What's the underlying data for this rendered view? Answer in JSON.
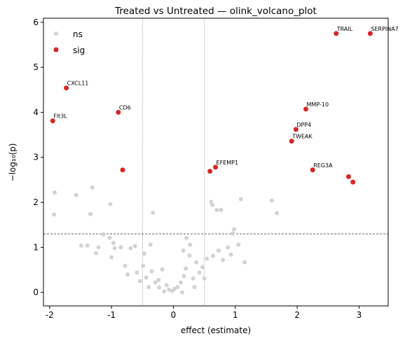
{
  "chart_data": {
    "type": "scatter",
    "title": "Treated vs Untreated — olink_volcano_plot",
    "xlabel": "effect (estimate)",
    "ylabel": "−log₁₀(p)",
    "xlim": [
      -2.1,
      3.47
    ],
    "ylim": [
      -0.3,
      6.09
    ],
    "xticks": [
      -2,
      -1,
      0,
      1,
      2,
      3
    ],
    "yticks": [
      0,
      1,
      2,
      3,
      4,
      5,
      6
    ],
    "vlines": [
      -0.5,
      0.5
    ],
    "hline": 1.301,
    "legend": "upper left",
    "series": [
      {
        "name": "ns",
        "color": "#d3d3d3",
        "x": [
          -1.92,
          -1.93,
          -1.57,
          -1.31,
          -1.34,
          -1.02,
          -0.33,
          0.61,
          0.63,
          0.7,
          0.77,
          1.09,
          1.59,
          1.67,
          0.98,
          0.96,
          -1.13,
          -1.49,
          -1.39,
          -1.25,
          -1.21,
          -0.97,
          -0.95,
          -1.0,
          -0.85,
          -0.69,
          -0.62,
          -0.78,
          -0.74,
          -0.59,
          -0.49,
          -0.44,
          -0.35,
          -0.24,
          -0.18,
          -0.11,
          -0.07,
          -0.02,
          0.02,
          0.07,
          0.12,
          0.17,
          0.2,
          0.26,
          0.21,
          0.27,
          0.37,
          0.42,
          0.47,
          0.5,
          0.54,
          0.64,
          0.73,
          0.8,
          0.88,
          0.93,
          1.05,
          1.15,
          0.32,
          -0.23,
          -0.29,
          -0.4,
          -0.54,
          0.14,
          -0.15,
          0.16,
          -0.37,
          -0.47,
          -1.03,
          0.34
        ],
        "values": [
          2.22,
          1.73,
          2.16,
          2.33,
          1.74,
          1.96,
          1.77,
          2.01,
          1.94,
          1.83,
          1.83,
          2.07,
          2.04,
          1.76,
          1.4,
          1.31,
          1.29,
          1.04,
          1.04,
          0.87,
          1.0,
          1.1,
          0.98,
          0.78,
          1.0,
          0.98,
          1.03,
          0.59,
          0.4,
          0.44,
          0.59,
          0.33,
          0.47,
          0.28,
          0.51,
          0.16,
          0.06,
          0.03,
          0.08,
          0.12,
          0.22,
          0.36,
          0.53,
          0.82,
          1.21,
          1.06,
          0.67,
          0.44,
          0.56,
          0.31,
          0.75,
          0.81,
          0.93,
          0.72,
          1.0,
          0.84,
          1.06,
          0.67,
          0.31,
          0.11,
          0.22,
          0.12,
          0.25,
          0.0,
          0.02,
          0.93,
          1.06,
          0.86,
          1.21,
          0.12
        ]
      },
      {
        "name": "sig",
        "color": "#d62728",
        "x": [
          2.63,
          3.18,
          -1.73,
          -1.95,
          -0.89,
          2.14,
          1.98,
          1.91,
          0.68,
          0.59,
          -0.82,
          2.25,
          2.83,
          2.9
        ],
        "values": [
          5.75,
          5.75,
          4.54,
          3.81,
          4.0,
          4.07,
          3.62,
          3.36,
          2.78,
          2.69,
          2.72,
          2.72,
          2.57,
          2.45
        ],
        "labels": [
          "TRAIL",
          "SERPINA7",
          "CXCL11",
          "Flt3L",
          "CD6",
          "MMP-10",
          "DPP4",
          "TWEAK",
          "EFEMP1",
          null,
          null,
          "REG3A",
          null,
          null
        ]
      }
    ]
  }
}
